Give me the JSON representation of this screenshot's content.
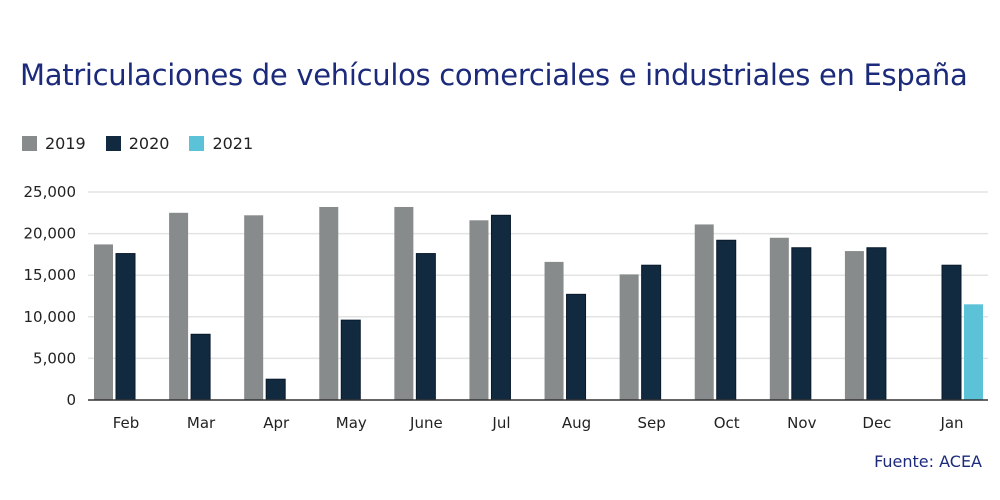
{
  "chart_data": {
    "type": "bar",
    "title": "Matriculaciones de vehículos comerciales e industriales en España",
    "source": "Fuente: ACEA",
    "categories": [
      "Feb",
      "Mar",
      "Apr",
      "May",
      "June",
      "Jul",
      "Aug",
      "Sep",
      "Oct",
      "Nov",
      "Dec",
      "Jan"
    ],
    "series": [
      {
        "name": "2019",
        "color": "#878b8c",
        "values": [
          18700,
          22500,
          22200,
          23200,
          23200,
          21600,
          16600,
          15100,
          21100,
          19500,
          17900,
          null
        ]
      },
      {
        "name": "2020",
        "color": "#112a40",
        "values": [
          17600,
          7900,
          2500,
          9600,
          17600,
          22200,
          12700,
          16200,
          19200,
          18300,
          18300,
          16200
        ]
      },
      {
        "name": "2021",
        "color": "#5bc2d8",
        "values": [
          null,
          null,
          null,
          null,
          null,
          null,
          null,
          null,
          null,
          null,
          null,
          11500
        ]
      }
    ],
    "yticks": [
      "0",
      "5,000",
      "10,000",
      "15,000",
      "20,000",
      "25,000"
    ],
    "ylim": [
      0,
      25000
    ],
    "grid": true,
    "legend_position": "top-left"
  }
}
